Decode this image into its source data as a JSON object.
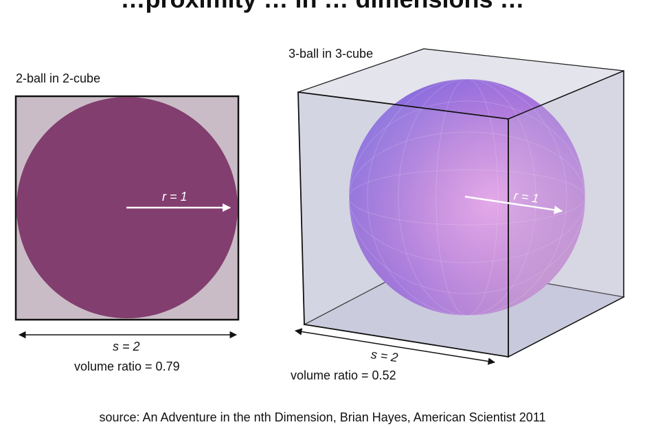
{
  "title": "…proximity … in … dimensions …",
  "left_panel": {
    "caption": "2-ball in 2-cube",
    "radius_label": "r = 1",
    "side_label": "s = 2",
    "volume_ratio": "volume ratio = 0.79"
  },
  "right_panel": {
    "caption": "3-ball in 3-cube",
    "radius_label": "r = 1",
    "side_label": "s = 2",
    "volume_ratio": "volume ratio = 0.52"
  },
  "source": "source: An Adventure in the nth Dimension, Brian Hayes, American Scientist 2011",
  "colors": {
    "square_fill": "#c9bcc6",
    "disk_fill": "#823e6e",
    "cube_fill": "#d6d7e2",
    "sphere_top": "#7c7ee8",
    "sphere_mid": "#c07bd8",
    "sphere_bottom": "#e9a2b6"
  }
}
